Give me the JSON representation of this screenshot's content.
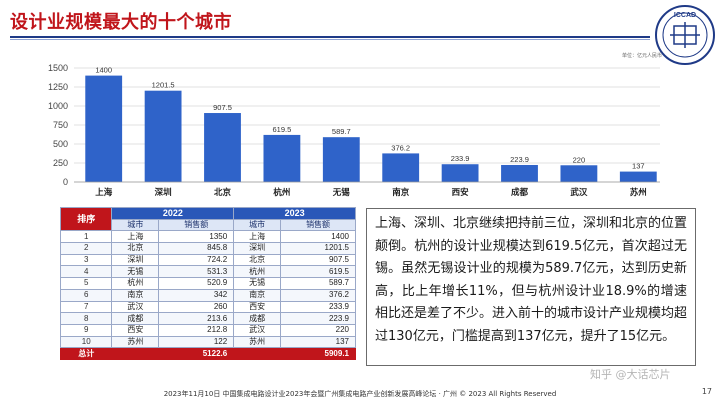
{
  "title": "设计业规模最大的十个城市",
  "unit_label": "单位：亿元人民币",
  "logo_text": "ICCAD",
  "chart_data": {
    "type": "bar",
    "categories": [
      "上海",
      "深圳",
      "北京",
      "杭州",
      "无锡",
      "南京",
      "西安",
      "成都",
      "武汉",
      "苏州"
    ],
    "values": [
      1400,
      1201.5,
      907.5,
      619.5,
      589.7,
      376.2,
      233.9,
      223.9,
      220,
      137
    ],
    "value_labels": [
      "1400",
      "1201.5",
      "907.5",
      "619.5",
      "589.7",
      "376.2",
      "233.9",
      "223.9",
      "220",
      "137"
    ],
    "yticks": [
      "0",
      "250",
      "500",
      "750",
      "1000",
      "1250",
      "1500"
    ],
    "ylim": [
      0,
      1500
    ],
    "bar_color": "#2f63c9",
    "grid": true
  },
  "table": {
    "rank_header": "排序",
    "year_a": "2022",
    "year_b": "2023",
    "city_header": "城市",
    "sales_header": "销售额",
    "rows": [
      {
        "rank": "1",
        "a_city": "上海",
        "a_val": "1350",
        "b_city": "上海",
        "b_val": "1400"
      },
      {
        "rank": "2",
        "a_city": "北京",
        "a_val": "845.8",
        "b_city": "深圳",
        "b_val": "1201.5"
      },
      {
        "rank": "3",
        "a_city": "深圳",
        "a_val": "724.2",
        "b_city": "北京",
        "b_val": "907.5"
      },
      {
        "rank": "4",
        "a_city": "无锡",
        "a_val": "531.3",
        "b_city": "杭州",
        "b_val": "619.5"
      },
      {
        "rank": "5",
        "a_city": "杭州",
        "a_val": "520.9",
        "b_city": "无锡",
        "b_val": "589.7"
      },
      {
        "rank": "6",
        "a_city": "南京",
        "a_val": "342",
        "b_city": "南京",
        "b_val": "376.2"
      },
      {
        "rank": "7",
        "a_city": "武汉",
        "a_val": "260",
        "b_city": "西安",
        "b_val": "233.9"
      },
      {
        "rank": "8",
        "a_city": "成都",
        "a_val": "213.6",
        "b_city": "成都",
        "b_val": "223.9"
      },
      {
        "rank": "9",
        "a_city": "西安",
        "a_val": "212.8",
        "b_city": "武汉",
        "b_val": "220"
      },
      {
        "rank": "10",
        "a_city": "苏州",
        "a_val": "122",
        "b_city": "苏州",
        "b_val": "137"
      }
    ],
    "total_label": "总计",
    "total_a": "5122.6",
    "total_b": "5909.1"
  },
  "description": "上海、深圳、北京继续把持前三位，深圳和北京的位置颠倒。杭州的设计业规模达到619.5亿元，首次超过无锡。虽然无锡设计业的规模为589.7亿元，达到历史新高，比上年增长11%，但与杭州设计业18.9%的增速相比还是差了不少。进入前十的城市设计产业规模均超过130亿元，门槛提高到137亿元，提升了15亿元。",
  "footer": "2023年11月10日  中国集成电路设计业2023年会暨广州集成电路产业创新发展高峰论坛 · 广州 © 2023 All Rights Reserved",
  "page_number": "17",
  "watermark": "知乎 @大话芯片"
}
